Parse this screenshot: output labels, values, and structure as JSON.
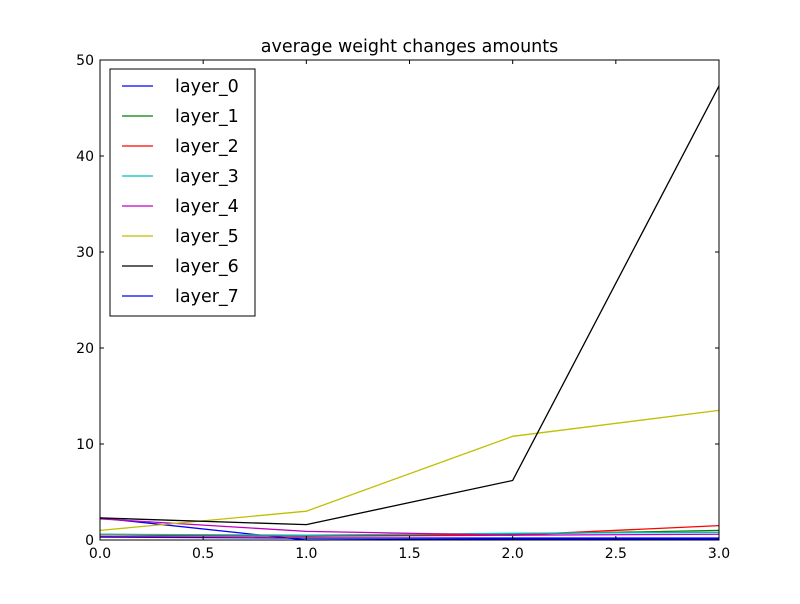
{
  "chart_data": {
    "type": "line",
    "title": "average weight changes amounts",
    "xlabel": "",
    "ylabel": "",
    "xlim": [
      0.0,
      3.0
    ],
    "ylim": [
      0,
      50
    ],
    "xticks": [
      "0.0",
      "0.5",
      "1.0",
      "1.5",
      "2.0",
      "2.5",
      "3.0"
    ],
    "yticks": [
      "0",
      "10",
      "20",
      "30",
      "40",
      "50"
    ],
    "grid": false,
    "legend_position": "top-left",
    "x": [
      0,
      1,
      2,
      3
    ],
    "series": [
      {
        "name": "layer_0",
        "color": "#0000ff",
        "values": [
          2.3,
          0.0,
          0.1,
          0.1
        ]
      },
      {
        "name": "layer_1",
        "color": "#008000",
        "values": [
          0.6,
          0.4,
          0.6,
          1.0
        ]
      },
      {
        "name": "layer_2",
        "color": "#ff0000",
        "values": [
          0.4,
          0.4,
          0.5,
          1.5
        ]
      },
      {
        "name": "layer_3",
        "color": "#00bfbf",
        "values": [
          0.6,
          0.5,
          0.7,
          0.8
        ]
      },
      {
        "name": "layer_4",
        "color": "#bf00bf",
        "values": [
          2.2,
          0.9,
          0.5,
          0.6
        ]
      },
      {
        "name": "layer_5",
        "color": "#bfbf00",
        "values": [
          1.0,
          3.0,
          10.8,
          13.5
        ]
      },
      {
        "name": "layer_6",
        "color": "#000000",
        "values": [
          2.3,
          1.6,
          6.2,
          47.3
        ]
      },
      {
        "name": "layer_7",
        "color": "#0000ff",
        "values": [
          0.3,
          0.2,
          0.2,
          0.2
        ]
      }
    ]
  }
}
